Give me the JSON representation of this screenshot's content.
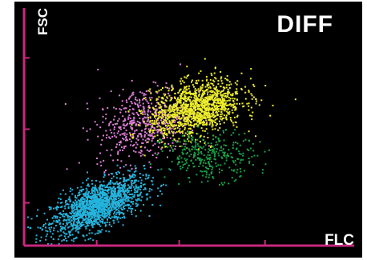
{
  "colors": {
    "background": "#000000",
    "axis": "#c8287e",
    "text": "#ffffff"
  },
  "chart_data": {
    "type": "scatter",
    "title": "DIFF",
    "xlabel": "FLC",
    "ylabel": "FSC",
    "grid": false,
    "xlim": [
      0,
      100
    ],
    "ylim": [
      0,
      100
    ],
    "x_ticks": [
      22,
      47,
      73
    ],
    "y_ticks": [
      18,
      49,
      79
    ],
    "series": [
      {
        "color": "#25b4dd",
        "cx": 22,
        "cy": 17,
        "sx": 7,
        "sy": 6,
        "n": 1600,
        "corr": 0.6
      },
      {
        "color": "#dc7ed6",
        "cx": 36,
        "cy": 52,
        "sx": 7,
        "sy": 8,
        "n": 520,
        "corr": 0.3
      },
      {
        "color": "#eded2a",
        "cx": 52,
        "cy": 58,
        "sx": 7,
        "sy": 6,
        "n": 1300,
        "corr": 0.35
      },
      {
        "color": "#1aa048",
        "cx": 56,
        "cy": 38,
        "sx": 7,
        "sy": 5,
        "n": 320,
        "corr": 0.0
      }
    ]
  }
}
